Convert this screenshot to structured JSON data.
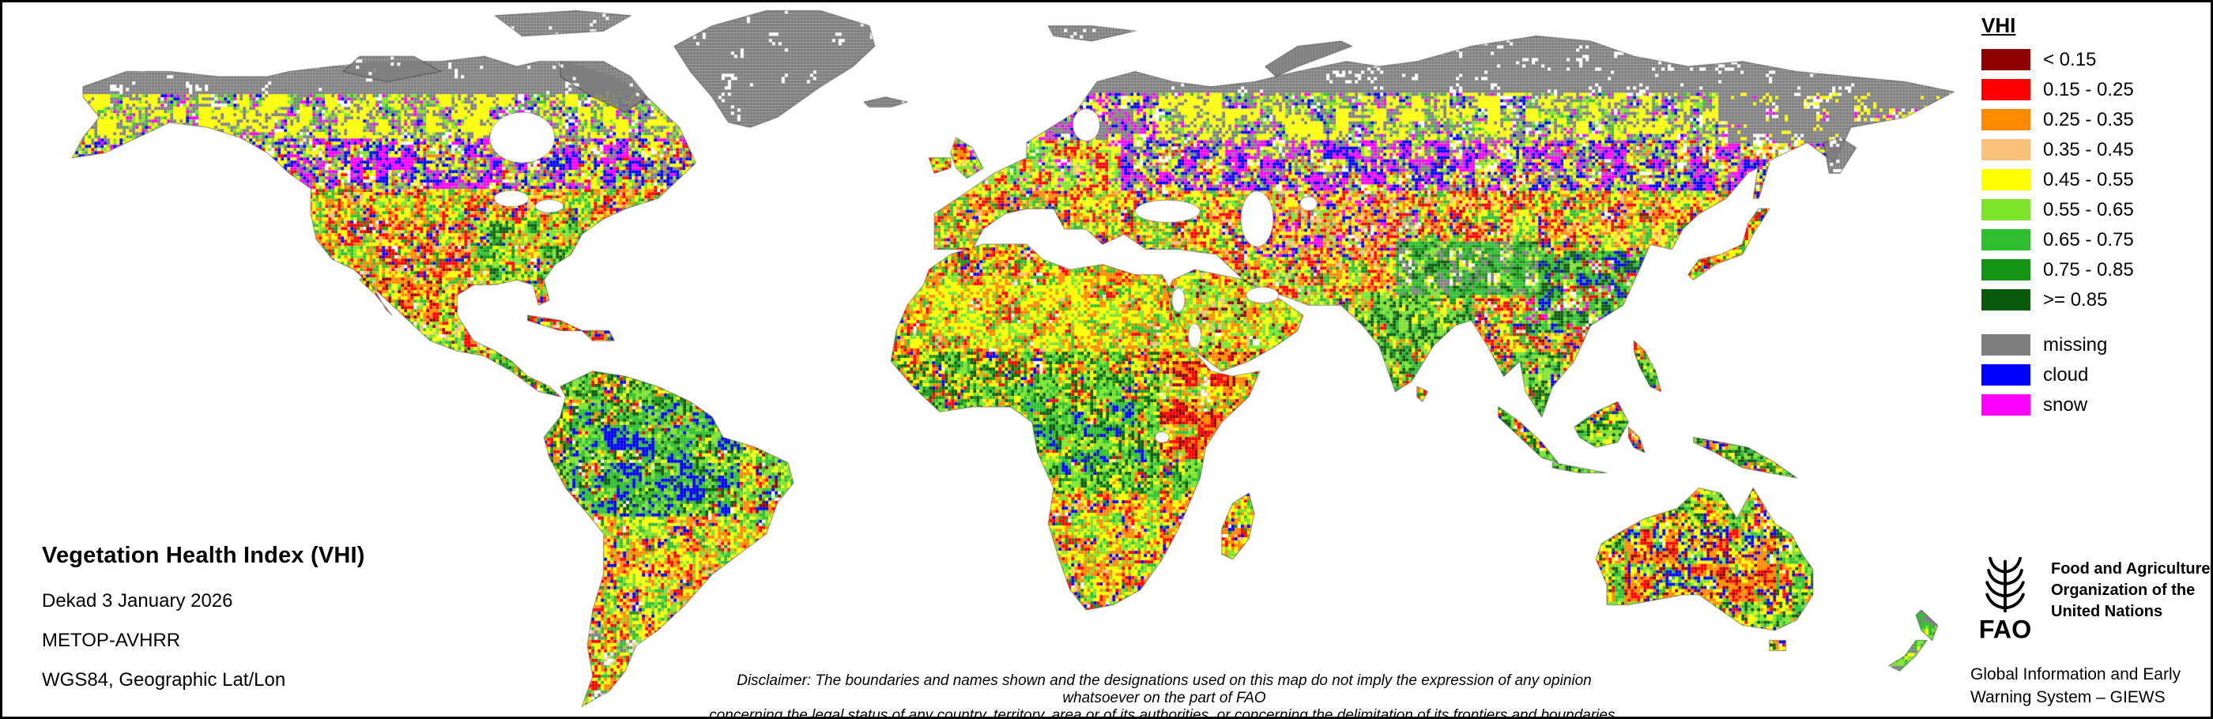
{
  "map": {
    "title": "Vegetation Health Index (VHI)",
    "subtitle_lines": [
      "Dekad 3 January 2026",
      "METOP-AVHRR",
      "WGS84, Geographic Lat/Lon"
    ],
    "disclaimer_line1": "Disclaimer: The boundaries and names shown and the designations used on this map do not imply the expression of any opinion whatsoever on the part of FAO",
    "disclaimer_line2": "concerning the legal status of any country, territory, area or of its authorities, or concerning the delimitation of its frontiers and boundaries.",
    "ocean_color": "#ffffff"
  },
  "legend": {
    "title": "VHI",
    "classes": [
      {
        "label": "< 0.15",
        "color": "#8F0000"
      },
      {
        "label": "0.15 - 0.25",
        "color": "#FF0000"
      },
      {
        "label": "0.25 - 0.35",
        "color": "#FF8A00"
      },
      {
        "label": "0.35 - 0.45",
        "color": "#F8C27A"
      },
      {
        "label": "0.45 - 0.55",
        "color": "#FFFF00"
      },
      {
        "label": "0.55 - 0.65",
        "color": "#7DE32B"
      },
      {
        "label": "0.65 - 0.75",
        "color": "#2FBE2F"
      },
      {
        "label": "0.75 - 0.85",
        "color": "#159415"
      },
      {
        "label": ">= 0.85",
        "color": "#0B5A0B"
      }
    ],
    "flags": [
      {
        "label": "missing",
        "color": "#7F7F7F"
      },
      {
        "label": "cloud",
        "color": "#0000FF"
      },
      {
        "label": "snow",
        "color": "#FF00FF"
      }
    ]
  },
  "branding": {
    "logo_text": "FAO",
    "fao_name_lines": [
      "Food and Agriculture",
      "Organization of the",
      "United Nations"
    ],
    "giews_lines": [
      "Global Information and Early",
      "Warning System – GIEWS"
    ]
  }
}
